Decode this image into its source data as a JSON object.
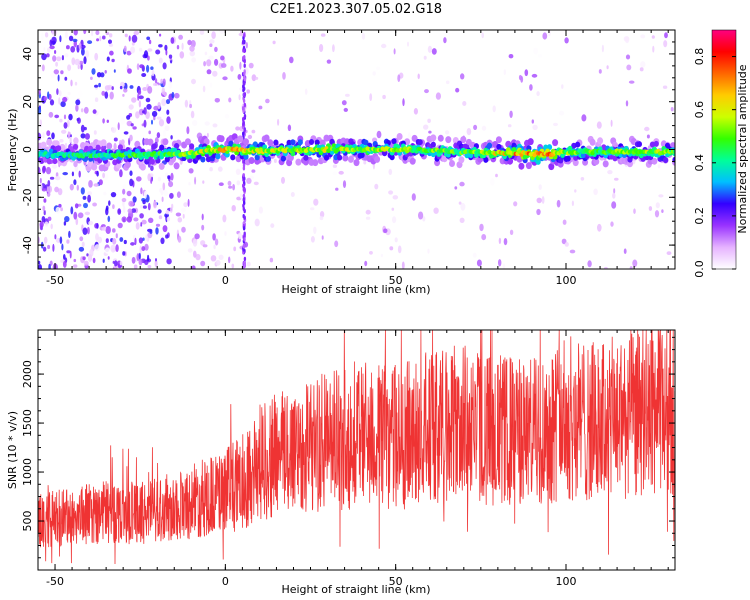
{
  "title": "C2E1.2023.307.05.02.G18",
  "chart_data": [
    {
      "type": "heatmap",
      "xlabel": "Height of straight line (km)",
      "ylabel": "Frequency (Hz)",
      "xlim": [
        -55,
        132
      ],
      "ylim": [
        -50,
        50
      ],
      "xticks": [
        -50,
        0,
        50,
        100
      ],
      "yticks": [
        -40,
        -20,
        0,
        20,
        40
      ],
      "colorbar": {
        "label": "Normalized spectral amplitude",
        "range": [
          0.0,
          0.9
        ],
        "ticks": [
          0.0,
          0.2,
          0.4,
          0.6,
          0.8
        ],
        "colors": [
          "#ffffff",
          "#e6b3ff",
          "#9933ff",
          "#3300ff",
          "#00bfff",
          "#00ff99",
          "#33ff00",
          "#ccff00",
          "#ffcc00",
          "#ff6600",
          "#ff0000",
          "#ff0080"
        ]
      },
      "ridge": {
        "x": [
          -55,
          -40,
          -20,
          -10,
          0,
          10,
          30,
          50,
          70,
          85,
          95,
          100,
          110,
          120,
          132
        ],
        "frequency": [
          -2,
          -2.5,
          -2,
          -1.5,
          0,
          -0.5,
          0,
          0,
          -1,
          -1.5,
          -2,
          -1,
          -1,
          -1,
          -1
        ],
        "amplitude": [
          0.4,
          0.45,
          0.5,
          0.55,
          0.7,
          0.6,
          0.6,
          0.55,
          0.5,
          0.7,
          0.75,
          0.55,
          0.5,
          0.55,
          0.55
        ]
      }
    },
    {
      "type": "line",
      "xlabel": "Height of straight line (km)",
      "ylabel": "SNR (10 * v/v)",
      "xlim": [
        -55,
        132
      ],
      "ylim": [
        0,
        2450
      ],
      "xticks": [
        -50,
        0,
        50,
        100
      ],
      "yticks": [
        500,
        1000,
        1500,
        2000
      ],
      "color": "#ef3333",
      "trend_x": [
        -55,
        -45,
        -35,
        -25,
        -15,
        -5,
        0,
        5,
        10,
        20,
        30,
        40,
        50,
        60,
        70,
        80,
        90,
        100,
        110,
        120,
        132
      ],
      "trend_y": [
        500,
        550,
        600,
        580,
        650,
        750,
        800,
        900,
        1100,
        1250,
        1300,
        1400,
        1350,
        1450,
        1500,
        1420,
        1400,
        1550,
        1500,
        1600,
        1700
      ]
    }
  ]
}
